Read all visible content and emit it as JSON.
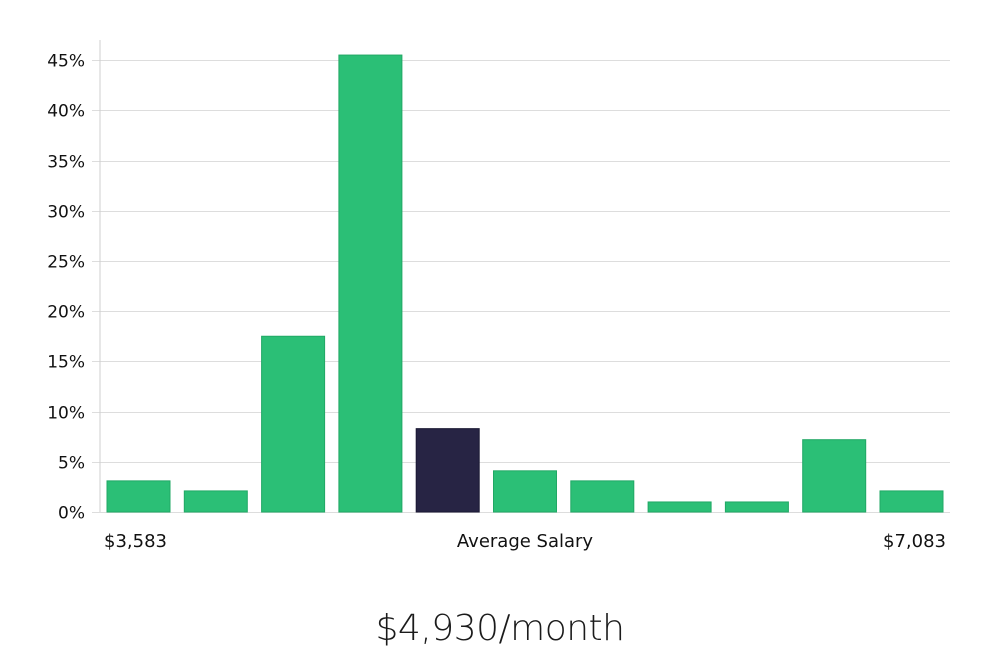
{
  "chart_data": {
    "type": "bar",
    "categories": [
      "1",
      "2",
      "3",
      "4",
      "5",
      "6",
      "7",
      "8",
      "9",
      "10",
      "11"
    ],
    "values": [
      3.1,
      2.1,
      17.5,
      45.5,
      8.3,
      4.1,
      3.1,
      1.0,
      1.0,
      7.2,
      2.1
    ],
    "highlight_index": 4,
    "ylim": [
      0,
      47
    ],
    "yticks": [
      0,
      5,
      10,
      15,
      20,
      25,
      30,
      35,
      40,
      45
    ],
    "ytick_suffix": "%",
    "grid": true,
    "x_labels": {
      "min": "$3,583",
      "center": "Average Salary",
      "max": "$7,083"
    },
    "colors": {
      "bar": "#2bbf76",
      "bar_edge": "#21a865",
      "highlight": "#272444",
      "grid": "#dddddd",
      "axis": "#cfcfcf",
      "text": "#111111"
    }
  },
  "headline": "$4,930/month"
}
